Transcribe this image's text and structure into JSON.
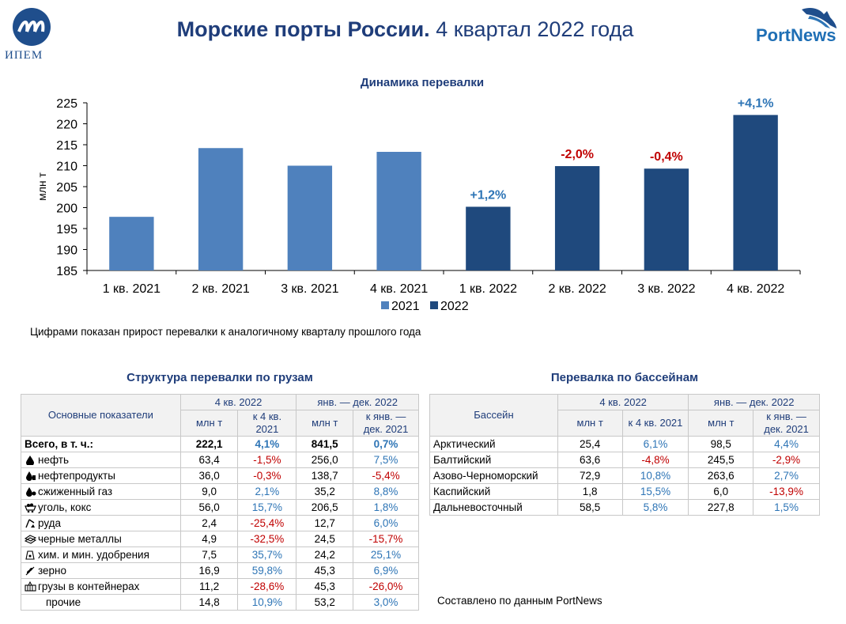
{
  "header": {
    "logo_text": "ИПЕМ",
    "title_bold": "Морские порты России.",
    "title_rest": " 4 квартал 2022 года",
    "portnews_logo": "PortNews"
  },
  "chart_data": {
    "type": "bar",
    "title": "Динамика перевалки",
    "ylabel": "млн т",
    "ylim": [
      185,
      225
    ],
    "yticks": [
      185,
      190,
      195,
      200,
      205,
      210,
      215,
      220,
      225
    ],
    "categories": [
      "1 кв. 2021",
      "2 кв. 2021",
      "3 кв. 2021",
      "4 кв. 2021",
      "1 кв. 2022",
      "2 кв. 2022",
      "3 кв. 2022",
      "4 кв. 2022"
    ],
    "series": [
      {
        "name": "2021",
        "color": "#4f81bd",
        "values": [
          197.8,
          214.2,
          210.0,
          213.3,
          null,
          null,
          null,
          null
        ]
      },
      {
        "name": "2022",
        "color": "#1f497d",
        "values": [
          null,
          null,
          null,
          null,
          200.2,
          209.9,
          209.3,
          222.1
        ]
      }
    ],
    "data_labels": [
      "",
      "",
      "",
      "",
      "+1,2%",
      "-2,0%",
      "-0,4%",
      "+4,1%"
    ],
    "data_label_colors": [
      "",
      "",
      "",
      "",
      "#2e75b6",
      "#c00000",
      "#c00000",
      "#2e75b6"
    ],
    "legend": "bottom",
    "grid": false
  },
  "note": "Цифрами показан прирост перевалки к аналогичному кварталу прошлого года",
  "cargo": {
    "title": "Структура перевалки по грузам",
    "h_indicators": "Основные показатели",
    "h_q4": "4 кв. 2022",
    "h_year": "янв. — дек. 2022",
    "h_mt": "млн т",
    "h_vs_q4_a": "к 4 кв.",
    "h_vs_q4_b": "2021",
    "h_vs_year_a": "к янв. —",
    "h_vs_year_b": "дек. 2021",
    "rows": [
      {
        "label": "Всего, в т. ч.:",
        "icon": "",
        "q4": "222,1",
        "q4chg": "4,1%",
        "yr": "841,5",
        "yrchg": "0,7%"
      },
      {
        "label": "нефть",
        "icon": "oil-drop-icon",
        "q4": "63,4",
        "q4chg": "-1,5%",
        "yr": "256,0",
        "yrchg": "7,5%"
      },
      {
        "label": "нефтепродукты",
        "icon": "oil-products-icon",
        "q4": "36,0",
        "q4chg": "-0,3%",
        "yr": "138,7",
        "yrchg": "-5,4%"
      },
      {
        "label": "сжиженный газ",
        "icon": "gas-icon",
        "q4": "9,0",
        "q4chg": "2,1%",
        "yr": "35,2",
        "yrchg": "8,8%"
      },
      {
        "label": "уголь, кокс",
        "icon": "coal-cart-icon",
        "q4": "56,0",
        "q4chg": "15,7%",
        "yr": "206,5",
        "yrchg": "1,8%"
      },
      {
        "label": "руда",
        "icon": "ore-icon",
        "q4": "2,4",
        "q4chg": "-25,4%",
        "yr": "12,7",
        "yrchg": "6,0%"
      },
      {
        "label": "черные металлы",
        "icon": "metal-bars-icon",
        "q4": "4,9",
        "q4chg": "-32,5%",
        "yr": "24,5",
        "yrchg": "-15,7%"
      },
      {
        "label": "хим. и мин. удобрения",
        "icon": "fertilizer-icon",
        "q4": "7,5",
        "q4chg": "35,7%",
        "yr": "24,2",
        "yrchg": "25,1%"
      },
      {
        "label": "зерно",
        "icon": "grain-icon",
        "q4": "16,9",
        "q4chg": "59,8%",
        "yr": "45,3",
        "yrchg": "6,9%"
      },
      {
        "label": "грузы в контейнерах",
        "icon": "container-icon",
        "q4": "11,2",
        "q4chg": "-28,6%",
        "yr": "45,3",
        "yrchg": "-26,0%"
      },
      {
        "label": "прочие",
        "icon": "",
        "q4": "14,8",
        "q4chg": "10,9%",
        "yr": "53,2",
        "yrchg": "3,0%"
      }
    ]
  },
  "basins": {
    "title": "Перевалка по бассейнам",
    "h_basin": "Бассейн",
    "h_q4": "4 кв. 2022",
    "h_year": "янв. — дек. 2022",
    "h_mt": "млн т",
    "h_vs_q4": "к 4 кв. 2021",
    "h_vs_year_a": "к янв. —",
    "h_vs_year_b": "дек. 2021",
    "rows": [
      {
        "label": "Арктический",
        "q4": "25,4",
        "q4chg": "6,1%",
        "yr": "98,5",
        "yrchg": "4,4%"
      },
      {
        "label": "Балтийский",
        "q4": "63,6",
        "q4chg": "-4,8%",
        "yr": "245,5",
        "yrchg": "-2,9%"
      },
      {
        "label": "Азово-Черноморский",
        "q4": "72,9",
        "q4chg": "10,8%",
        "yr": "263,6",
        "yrchg": "2,7%"
      },
      {
        "label": "Каспийский",
        "q4": "1,8",
        "q4chg": "15,5%",
        "yr": "6,0",
        "yrchg": "-13,9%"
      },
      {
        "label": "Дальневосточный",
        "q4": "58,5",
        "q4chg": "5,8%",
        "yr": "227,8",
        "yrchg": "1,5%"
      }
    ]
  },
  "source": "Составлено по данным PortNews"
}
